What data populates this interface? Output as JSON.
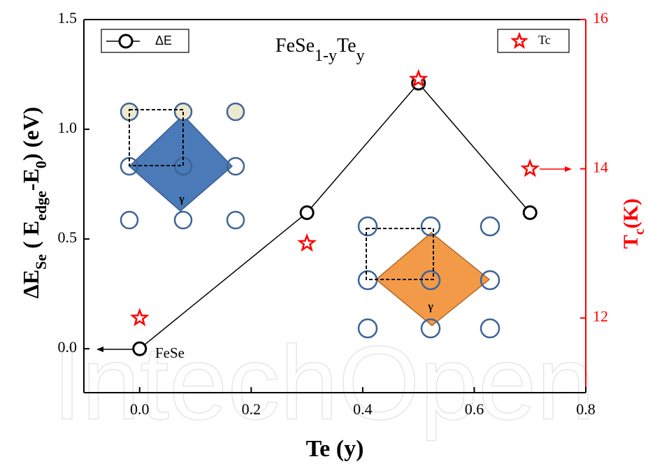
{
  "chart_data": {
    "type": "line",
    "title": [
      "FeSe",
      "1-y",
      "Te",
      "y"
    ],
    "x_label": "Te (y)",
    "y_label": [
      "ΔE",
      "Se",
      " ( E",
      "edge",
      "-E",
      "0",
      ") (eV)"
    ],
    "y2_label": [
      "T",
      "c",
      "(K)"
    ],
    "x": [
      0,
      0.3,
      0.5,
      0.7
    ],
    "series": [
      {
        "name": "ΔE",
        "color": "#000000",
        "values": [
          0,
          0.62,
          1.21,
          0.62
        ]
      },
      {
        "name": "Tc",
        "color": "#ff0000",
        "values": [
          12,
          13.0,
          15.2,
          14
        ],
        "axis": "y2"
      }
    ],
    "xlim": [
      -0.1,
      0.8
    ],
    "xticks": [
      {
        "value": 0,
        "label": "0.0"
      },
      0.2,
      0.4,
      0.6,
      0.8
    ],
    "ylim": [
      -0.2,
      1.5
    ],
    "yticks": [
      {
        "value": 0,
        "label": "0.0"
      },
      0.5,
      {
        "value": 1,
        "label": "1.0"
      },
      1.5
    ],
    "y2lim": [
      11,
      16
    ],
    "y2ticks": [
      12,
      14,
      16
    ],
    "annotations": [
      "FeSe",
      "γ",
      "γ"
    ],
    "watermark": "IntechOpen",
    "grid": false
  }
}
